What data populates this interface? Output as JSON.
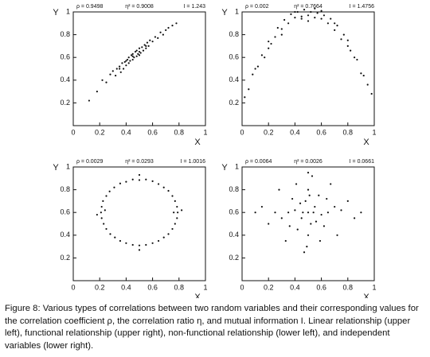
{
  "chart_data": [
    {
      "type": "scatter",
      "annotations": [
        "ρ = 0.9498",
        "η² = 0.9008",
        "I = 1.243"
      ],
      "x_label": "X",
      "y_label": "Y",
      "xlim": [
        0,
        1
      ],
      "ylim": [
        0,
        1
      ],
      "xticks": [
        0,
        0.2,
        0.4,
        0.6,
        0.8,
        1
      ],
      "yticks": [
        0.2,
        0.4,
        0.6,
        0.8,
        1
      ],
      "color": "#111111",
      "x": [
        0.12,
        0.18,
        0.22,
        0.25,
        0.28,
        0.3,
        0.32,
        0.33,
        0.35,
        0.36,
        0.37,
        0.38,
        0.39,
        0.4,
        0.41,
        0.42,
        0.42,
        0.43,
        0.44,
        0.45,
        0.45,
        0.46,
        0.47,
        0.48,
        0.48,
        0.49,
        0.5,
        0.5,
        0.51,
        0.52,
        0.53,
        0.54,
        0.55,
        0.56,
        0.57,
        0.58,
        0.6,
        0.62,
        0.64,
        0.66,
        0.68,
        0.7,
        0.72,
        0.75,
        0.78,
        0.35,
        0.45,
        0.55,
        0.4,
        0.5
      ],
      "y": [
        0.22,
        0.3,
        0.4,
        0.38,
        0.45,
        0.48,
        0.44,
        0.5,
        0.52,
        0.47,
        0.55,
        0.5,
        0.56,
        0.53,
        0.58,
        0.55,
        0.6,
        0.57,
        0.62,
        0.58,
        0.63,
        0.6,
        0.65,
        0.61,
        0.66,
        0.63,
        0.68,
        0.62,
        0.64,
        0.69,
        0.66,
        0.71,
        0.68,
        0.73,
        0.7,
        0.75,
        0.74,
        0.78,
        0.77,
        0.82,
        0.8,
        0.84,
        0.86,
        0.88,
        0.9,
        0.5,
        0.61,
        0.7,
        0.57,
        0.65
      ]
    },
    {
      "type": "scatter",
      "annotations": [
        "ρ = 0.002",
        "η² = 0.7664",
        "I = 1.4756"
      ],
      "x_label": "X",
      "y_label": "Y",
      "xlim": [
        0,
        1
      ],
      "ylim": [
        0,
        1
      ],
      "xticks": [
        0,
        0.2,
        0.4,
        0.6,
        0.8,
        1
      ],
      "yticks": [
        0.2,
        0.4,
        0.6,
        0.8,
        1
      ],
      "color": "#111111",
      "x": [
        0.02,
        0.05,
        0.08,
        0.1,
        0.12,
        0.15,
        0.17,
        0.2,
        0.22,
        0.25,
        0.27,
        0.3,
        0.32,
        0.35,
        0.37,
        0.4,
        0.42,
        0.45,
        0.47,
        0.5,
        0.52,
        0.55,
        0.57,
        0.6,
        0.62,
        0.65,
        0.67,
        0.7,
        0.72,
        0.75,
        0.77,
        0.8,
        0.82,
        0.85,
        0.87,
        0.9,
        0.92,
        0.95,
        0.98,
        0.3,
        0.4,
        0.5,
        0.6,
        0.7,
        0.2,
        0.8,
        0.45,
        0.55
      ],
      "y": [
        0.25,
        0.32,
        0.45,
        0.5,
        0.52,
        0.62,
        0.6,
        0.74,
        0.72,
        0.78,
        0.86,
        0.85,
        0.93,
        0.9,
        0.98,
        0.95,
        1.0,
        0.96,
        1.02,
        0.97,
        1.0,
        0.95,
        0.99,
        0.94,
        0.97,
        0.9,
        0.94,
        0.84,
        0.88,
        0.76,
        0.8,
        0.7,
        0.66,
        0.6,
        0.58,
        0.46,
        0.44,
        0.36,
        0.28,
        0.8,
        1.0,
        0.92,
        1.01,
        0.9,
        0.68,
        0.75,
        0.94,
        1.03
      ]
    },
    {
      "type": "scatter",
      "annotations": [
        "ρ = 0.0029",
        "η² = 0.0293",
        "I = 1.0016"
      ],
      "x_label": "X",
      "y_label": "Y",
      "xlim": [
        0,
        1
      ],
      "ylim": [
        0,
        1
      ],
      "xticks": [
        0,
        0.2,
        0.4,
        0.6,
        0.8,
        1
      ],
      "yticks": [
        0.2,
        0.4,
        0.6,
        0.8,
        1
      ],
      "color": "#111111",
      "x": [
        0.79,
        0.785,
        0.77,
        0.75,
        0.72,
        0.685,
        0.645,
        0.6,
        0.55,
        0.5,
        0.45,
        0.4,
        0.355,
        0.31,
        0.275,
        0.25,
        0.225,
        0.215,
        0.21,
        0.215,
        0.23,
        0.25,
        0.28,
        0.315,
        0.355,
        0.4,
        0.45,
        0.5,
        0.55,
        0.6,
        0.645,
        0.685,
        0.72,
        0.75,
        0.77,
        0.785,
        0.82,
        0.18,
        0.5,
        0.5,
        0.76,
        0.24
      ],
      "y": [
        0.6,
        0.65,
        0.7,
        0.745,
        0.79,
        0.82,
        0.85,
        0.875,
        0.89,
        0.885,
        0.89,
        0.87,
        0.855,
        0.82,
        0.785,
        0.745,
        0.7,
        0.65,
        0.6,
        0.55,
        0.5,
        0.455,
        0.41,
        0.38,
        0.35,
        0.33,
        0.315,
        0.31,
        0.315,
        0.33,
        0.35,
        0.38,
        0.41,
        0.455,
        0.5,
        0.55,
        0.62,
        0.58,
        0.93,
        0.27,
        0.6,
        0.62
      ]
    },
    {
      "type": "scatter",
      "annotations": [
        "ρ = 0.0064",
        "η² = 0.0026",
        "I = 0.0661"
      ],
      "x_label": "X",
      "y_label": "Y",
      "xlim": [
        0,
        1
      ],
      "ylim": [
        0,
        1
      ],
      "xticks": [
        0,
        0.2,
        0.4,
        0.6,
        0.8,
        1
      ],
      "yticks": [
        0.2,
        0.4,
        0.6,
        0.8,
        1
      ],
      "color": "#111111",
      "x": [
        0.5,
        0.45,
        0.55,
        0.4,
        0.6,
        0.48,
        0.52,
        0.35,
        0.65,
        0.42,
        0.58,
        0.3,
        0.7,
        0.5,
        0.44,
        0.56,
        0.38,
        0.62,
        0.25,
        0.75,
        0.5,
        0.46,
        0.54,
        0.2,
        0.8,
        0.33,
        0.67,
        0.5,
        0.41,
        0.59,
        0.15,
        0.85,
        0.28,
        0.72,
        0.47,
        0.53,
        0.36,
        0.64,
        0.1,
        0.9,
        0.49,
        0.51
      ],
      "y": [
        0.6,
        0.55,
        0.65,
        0.62,
        0.58,
        0.7,
        0.5,
        0.6,
        0.6,
        0.45,
        0.75,
        0.55,
        0.65,
        0.8,
        0.68,
        0.52,
        0.72,
        0.48,
        0.6,
        0.62,
        0.4,
        0.6,
        0.6,
        0.5,
        0.7,
        0.35,
        0.85,
        0.95,
        0.85,
        0.35,
        0.65,
        0.55,
        0.8,
        0.4,
        0.25,
        0.92,
        0.48,
        0.72,
        0.6,
        0.6,
        0.3,
        0.75
      ]
    }
  ],
  "caption": {
    "label": "Figure 8:",
    "text": "Various types of correlations between two random variables and their corresponding values for the correlation coefficient ρ, the correlation ratio η, and mutual information I. Linear relationship (upper left), functional relationship (upper right), non-functional relationship (lower left), and independent variables (lower right)."
  }
}
